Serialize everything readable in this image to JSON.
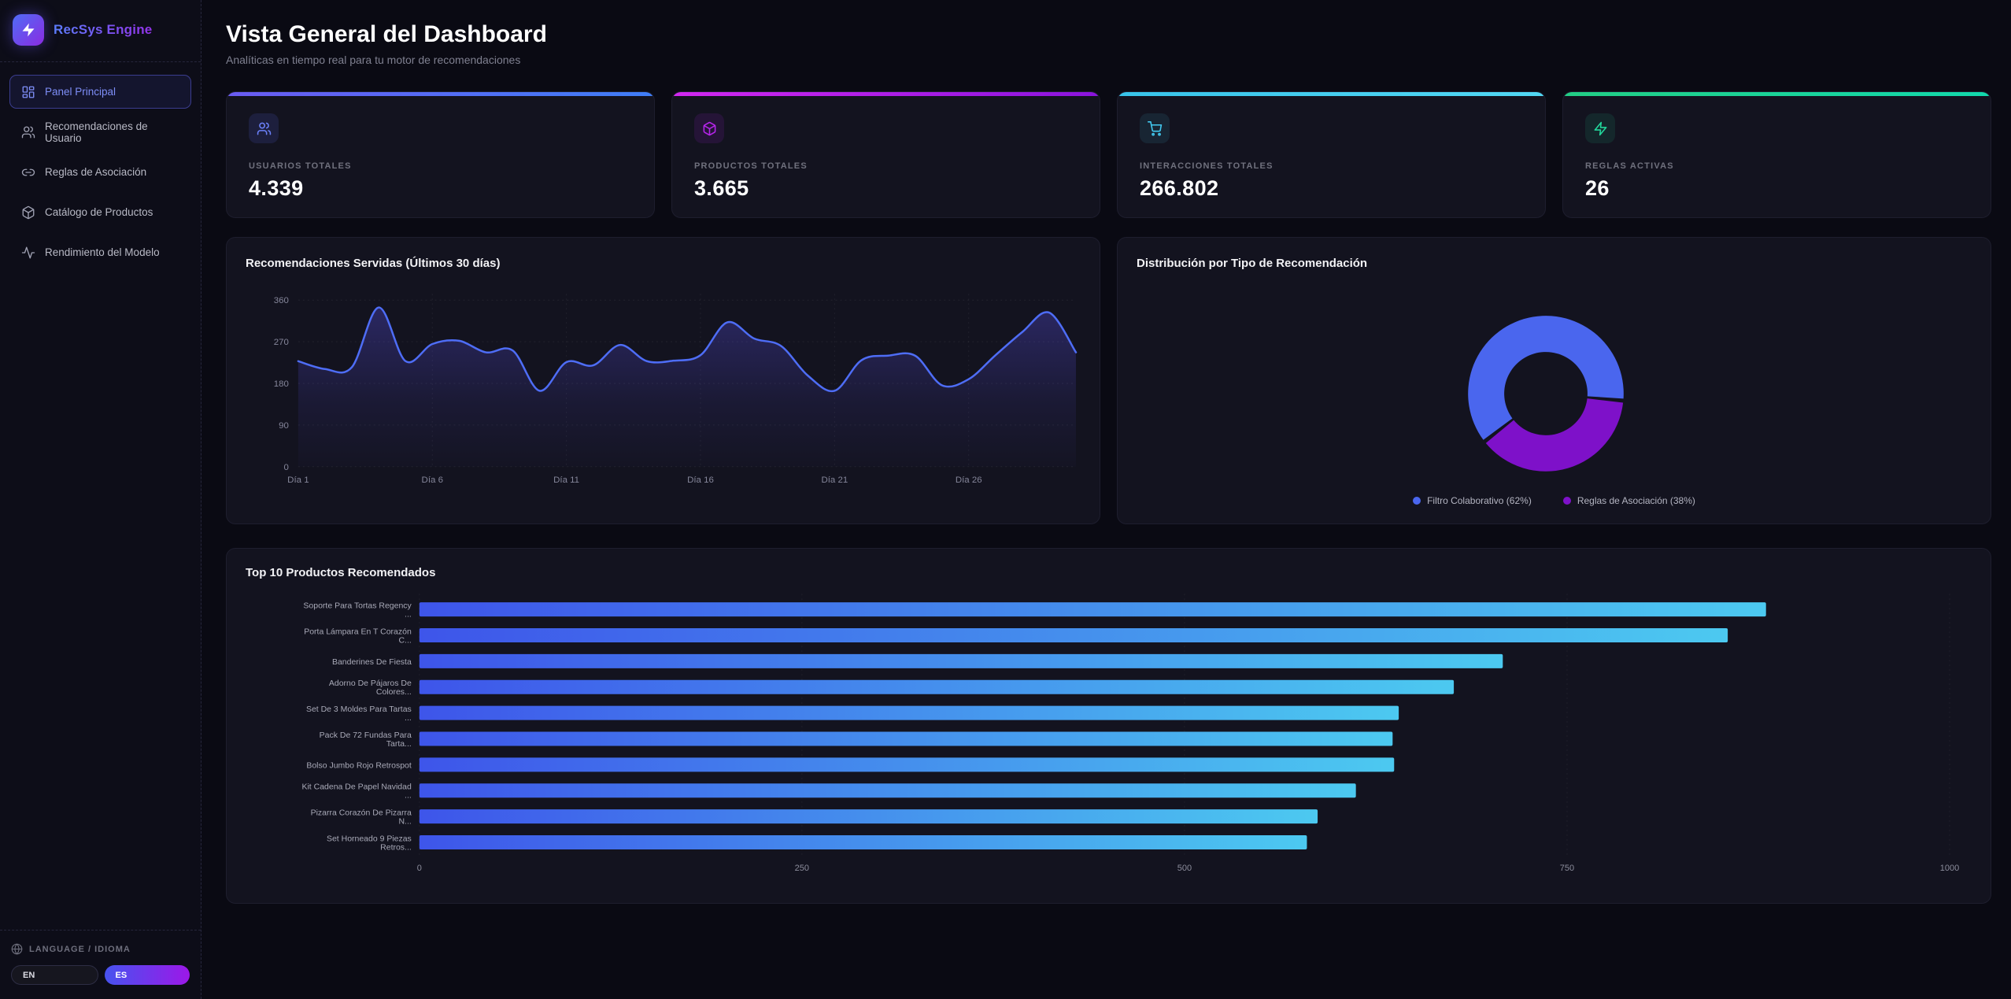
{
  "app": {
    "name": "RecSys Engine"
  },
  "sidebar": {
    "items": [
      {
        "label": "Panel Principal",
        "icon": "dashboard-icon",
        "active": true
      },
      {
        "label": "Recomendaciones de Usuario",
        "icon": "users-icon",
        "active": false
      },
      {
        "label": "Reglas de Asociación",
        "icon": "link-icon",
        "active": false
      },
      {
        "label": "Catálogo de Productos",
        "icon": "package-icon",
        "active": false
      },
      {
        "label": "Rendimiento del Modelo",
        "icon": "activity-icon",
        "active": false
      }
    ],
    "language": {
      "label": "LANGUAGE / IDIOMA",
      "options": {
        "en": "EN",
        "es": "ES"
      },
      "selected": "ES"
    }
  },
  "header": {
    "title": "Vista General del Dashboard",
    "subtitle": "Analíticas en tiempo real para tu motor de recomendaciones"
  },
  "stats": [
    {
      "label": "USUARIOS TOTALES",
      "value": "4.339",
      "icon": "users-icon",
      "accent": [
        "#6a5bf2",
        "#3f7ef7"
      ],
      "icon_color": "#6b80f8",
      "icon_bg": "rgba(91,108,245,0.14)"
    },
    {
      "label": "PRODUCTOS TOTALES",
      "value": "3.665",
      "icon": "package-icon",
      "accent": [
        "#d228f0",
        "#8a14dd"
      ],
      "icon_color": "#b525ea",
      "icon_bg": "rgba(176,37,234,0.12)"
    },
    {
      "label": "INTERACCIONES TOTALES",
      "value": "266.802",
      "icon": "cart-icon",
      "accent": [
        "#38c4ea",
        "#52d8f4"
      ],
      "icon_color": "#42c9f0",
      "icon_bg": "rgba(66,201,240,0.10)"
    },
    {
      "label": "REGLAS ACTIVAS",
      "value": "26",
      "icon": "zap-icon",
      "accent": [
        "#22ce85",
        "#12d9ad"
      ],
      "icon_color": "#22d79b",
      "icon_bg": "rgba(34,215,155,0.10)"
    }
  ],
  "chart_data": [
    {
      "type": "area",
      "title": "Recomendaciones Servidas (Últimos 30 días)",
      "xlabel": "",
      "ylabel": "",
      "ylim": [
        0,
        360
      ],
      "y_ticks": [
        0,
        90,
        180,
        270,
        360
      ],
      "x_tick_days": [
        1,
        6,
        11,
        16,
        21,
        26
      ],
      "x_tick_labels": [
        "Día 1",
        "Día 6",
        "Día 11",
        "Día 16",
        "Día 21",
        "Día 26"
      ],
      "days": [
        1,
        2,
        3,
        4,
        5,
        6,
        7,
        8,
        9,
        10,
        11,
        12,
        13,
        14,
        15,
        16,
        17,
        18,
        19,
        20,
        21,
        22,
        23,
        24,
        25,
        26,
        27,
        28,
        29,
        30
      ],
      "values": [
        228,
        211,
        215,
        344,
        228,
        265,
        272,
        247,
        251,
        164,
        226,
        219,
        263,
        228,
        229,
        241,
        312,
        277,
        261,
        197,
        164,
        230,
        240,
        240,
        176,
        189,
        241,
        291,
        333,
        247
      ],
      "line_color": "#4e6df6",
      "fill_color": "#5d53f0",
      "grid": "dotted"
    },
    {
      "type": "donut",
      "title": "Distribución por Tipo de Recomendación",
      "slices": [
        {
          "label": "Filtro Colaborativo (62%)",
          "value": 62,
          "color": "#4a66ee"
        },
        {
          "label": "Reglas de Asociación (38%)",
          "value": 38,
          "color": "#7e11c9"
        }
      ],
      "cutout_ratio": 0.54,
      "start_angle_deg": 232,
      "gap_deg": 3,
      "legend_position": "bottom"
    },
    {
      "type": "bar-horizontal",
      "title": "Top 10 Productos Recomendados",
      "categories": [
        "Soporte Para Tortas Regency ...",
        "Porta Lámpara En T Corazón C...",
        "Banderines De Fiesta",
        "Adorno De Pájaros De Colores...",
        "Set De 3 Moldes Para Tartas ...",
        "Pack De 72 Fundas Para Tarta...",
        "Bolso Jumbo Rojo Retrospot",
        "Kit Cadena De Papel Navidad ...",
        "Pizarra Corazón De Pizarra N...",
        "Set Horneado 9 Piezas Retros..."
      ],
      "category_lines": [
        [
          "Soporte Para Tortas Regency",
          "..."
        ],
        [
          "Porta Lámpara En T Corazón",
          "C..."
        ],
        [
          "Banderines De Fiesta"
        ],
        [
          "Adorno De Pájaros De",
          "Colores..."
        ],
        [
          "Set De 3 Moldes Para Tartas",
          "..."
        ],
        [
          "Pack De 72 Fundas Para",
          "Tarta..."
        ],
        [
          "Bolso Jumbo Rojo Retrospot"
        ],
        [
          "Kit Cadena De Papel Navidad",
          "..."
        ],
        [
          "Pizarra Corazón De Pizarra",
          "N..."
        ],
        [
          "Set Horneado 9 Piezas",
          "Retros..."
        ]
      ],
      "values": [
        880,
        855,
        708,
        676,
        640,
        636,
        637,
        612,
        587,
        580
      ],
      "xlim": [
        0,
        1000
      ],
      "x_ticks": [
        0,
        250,
        500,
        750,
        1000
      ],
      "bar_gradient": [
        "#3e55ea",
        "#4cc9f0"
      ],
      "grid": "dotted-vertical"
    }
  ]
}
